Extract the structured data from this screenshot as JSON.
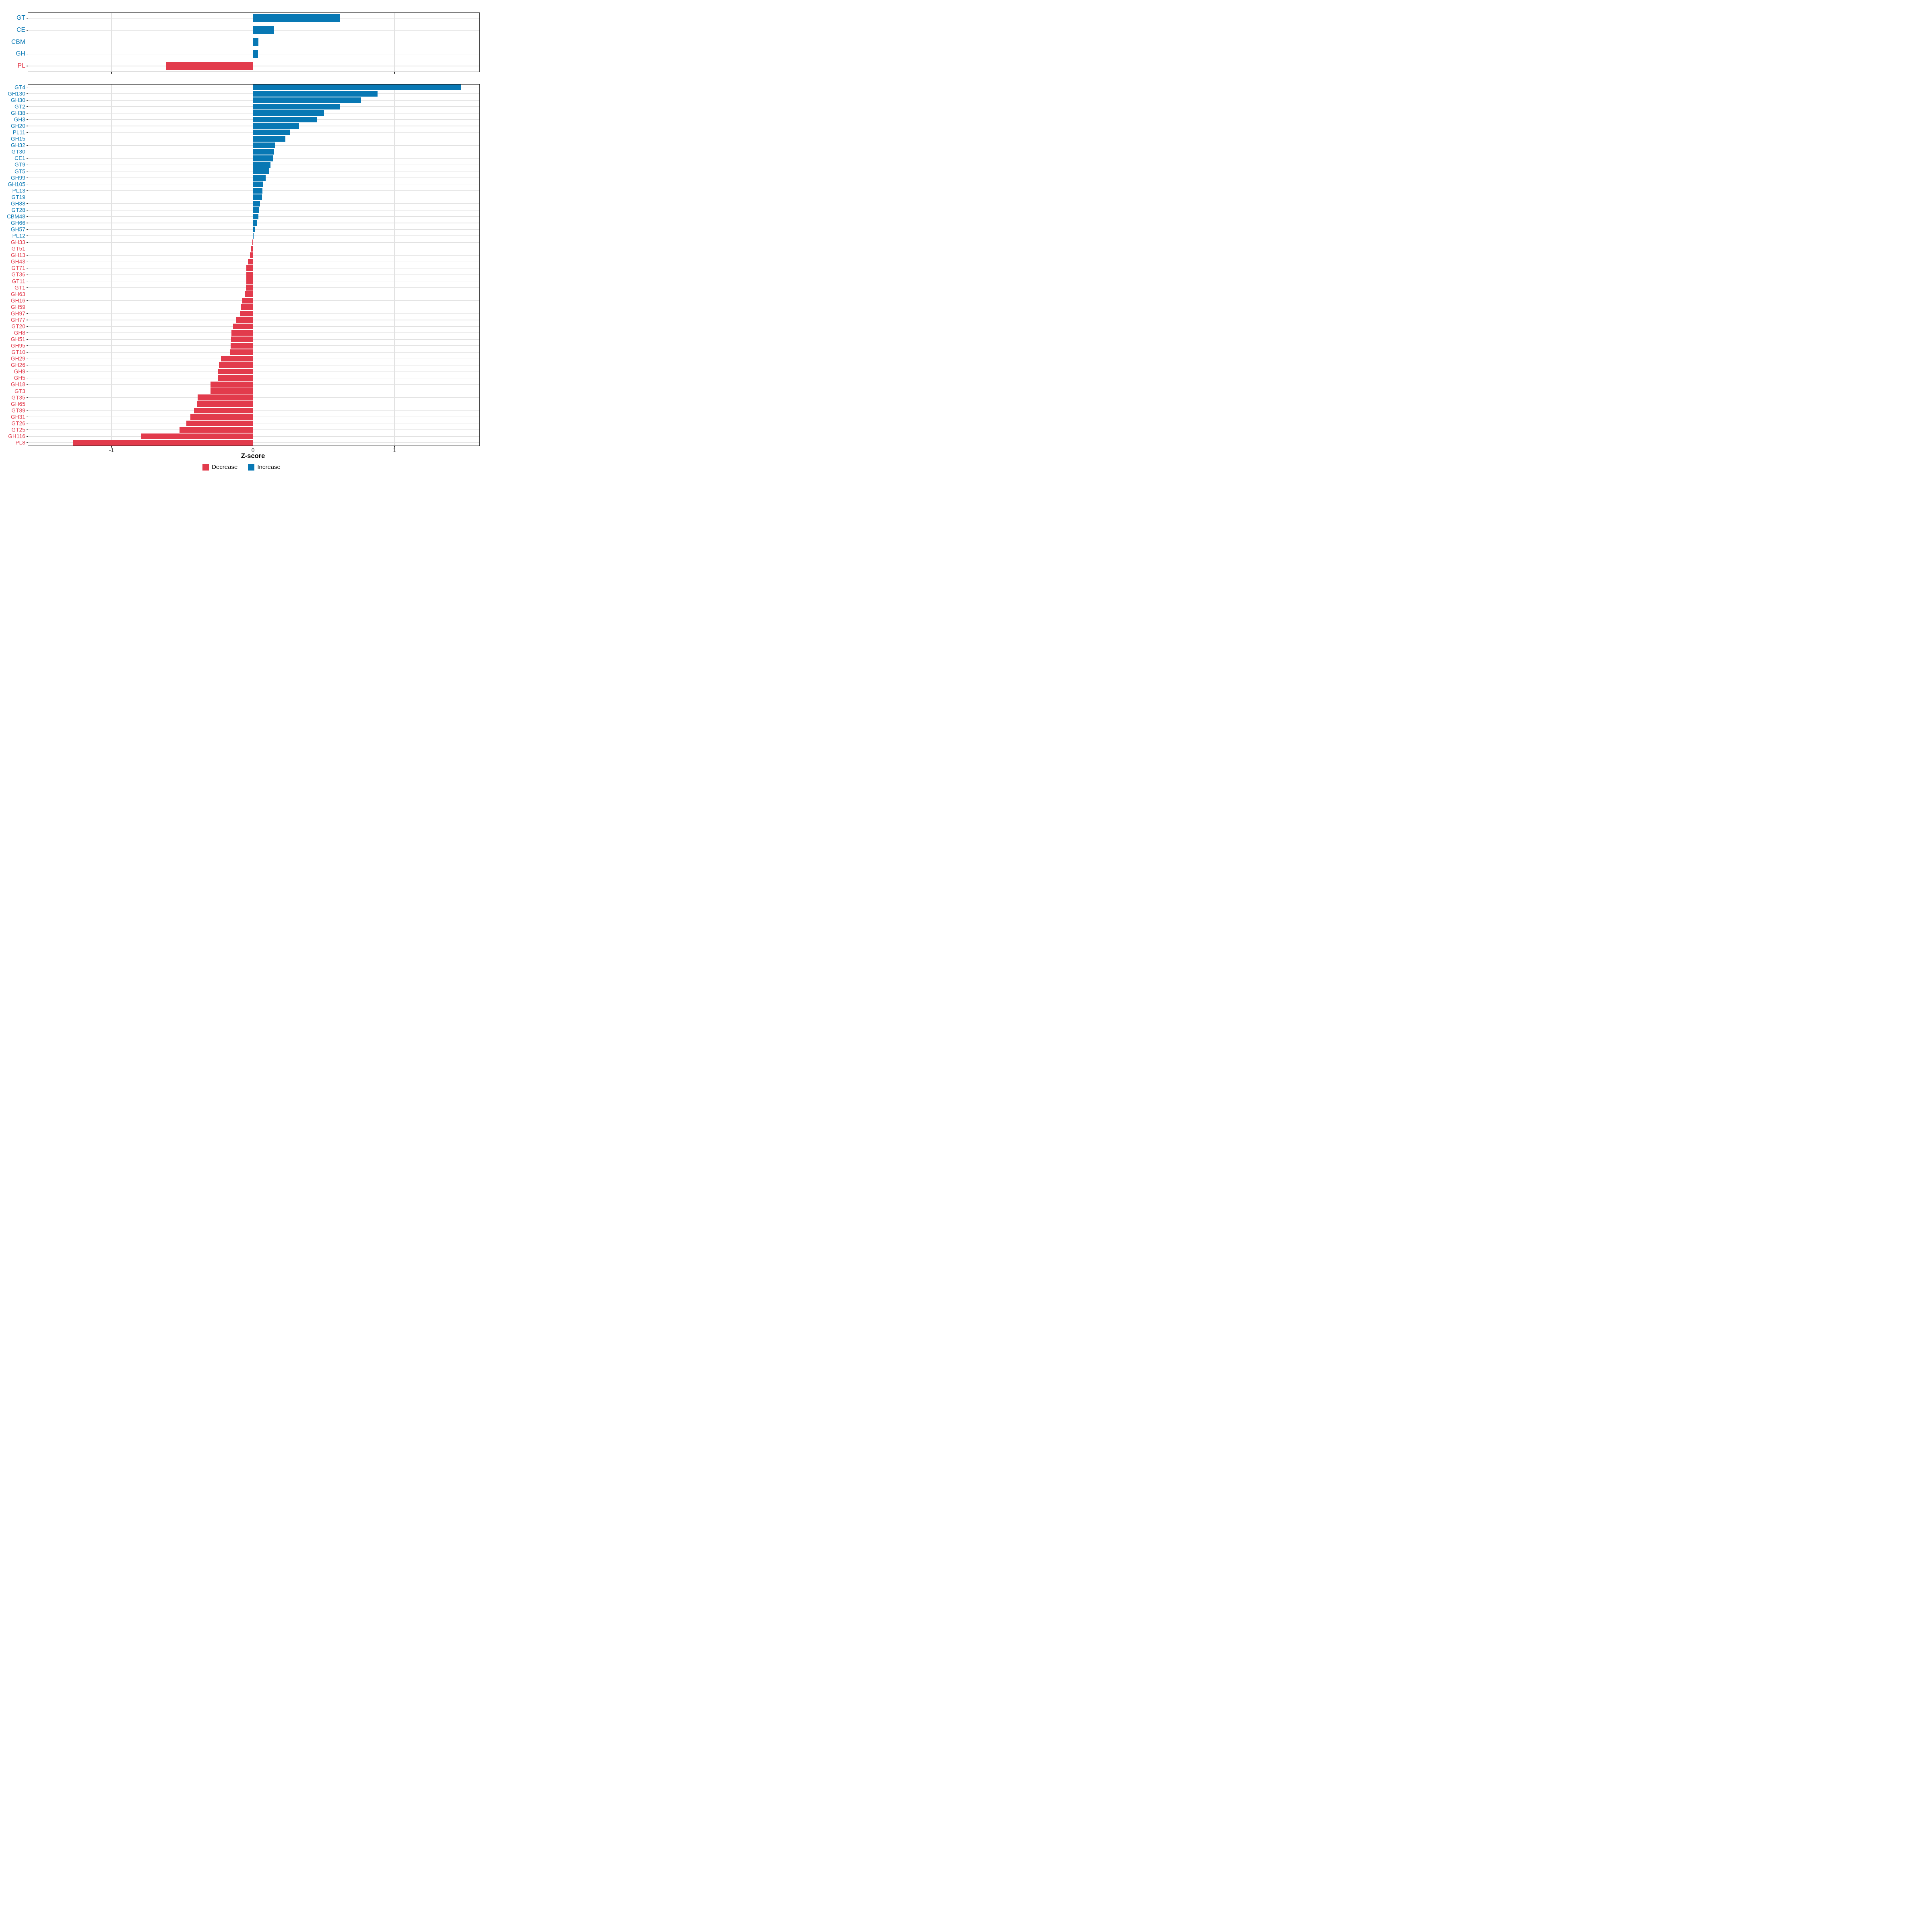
{
  "chart": {
    "xlabel": "Z-score",
    "x_tick_labels": [
      "-1",
      "0",
      "1"
    ],
    "x_tick_values": [
      -1,
      0,
      1
    ],
    "xlim": [
      -1.58,
      1.6
    ],
    "grid": "on",
    "colors": {
      "increase": "#0878B4",
      "decrease": "#E23B4C",
      "grid": "#E2E2E2",
      "axis_text": "#4D4D4D",
      "panel_border": "#1A1A1A"
    },
    "legend": {
      "position": "bottom-center",
      "items": [
        {
          "key": "decrease",
          "label": "Decrease"
        },
        {
          "key": "increase",
          "label": "Increase"
        }
      ]
    }
  },
  "chart_data": [
    {
      "type": "bar",
      "orientation": "horizontal",
      "panel": "top",
      "title": "",
      "xlabel": "Z-score",
      "xlim": [
        -1.58,
        1.6
      ],
      "categories": [
        "GT",
        "CE",
        "CBM",
        "GH",
        "PL"
      ],
      "values": [
        0.614,
        0.147,
        0.039,
        0.036,
        -0.614
      ]
    },
    {
      "type": "bar",
      "orientation": "horizontal",
      "panel": "bottom",
      "title": "",
      "xlabel": "Z-score",
      "xlim": [
        -1.58,
        1.6
      ],
      "categories": [
        "GT4",
        "GH130",
        "GH30",
        "GT2",
        "GH38",
        "GH3",
        "GH20",
        "PL11",
        "GH15",
        "GH32",
        "GT30",
        "CE1",
        "GT9",
        "GT5",
        "GH99",
        "GH105",
        "PL13",
        "GT19",
        "GH88",
        "GT28",
        "CBM48",
        "GH66",
        "GH57",
        "PL12",
        "GH33",
        "GT51",
        "GH13",
        "GH43",
        "GT71",
        "GT36",
        "GT11",
        "GT1",
        "GH63",
        "GH16",
        "GH59",
        "GH97",
        "GH77",
        "GT20",
        "GH8",
        "GH51",
        "GH95",
        "GT10",
        "GH29",
        "GH26",
        "GH9",
        "GH5",
        "GH18",
        "GT3",
        "GT35",
        "GH65",
        "GT89",
        "GH31",
        "GT26",
        "GT25",
        "GH116",
        "PL8"
      ],
      "values": [
        1.47,
        0.88,
        0.765,
        0.615,
        0.503,
        0.455,
        0.325,
        0.26,
        0.23,
        0.155,
        0.15,
        0.145,
        0.125,
        0.115,
        0.09,
        0.07,
        0.066,
        0.063,
        0.05,
        0.042,
        0.038,
        0.026,
        0.012,
        0.005,
        -0.004,
        -0.017,
        -0.021,
        -0.036,
        -0.046,
        -0.047,
        -0.048,
        -0.049,
        -0.059,
        -0.076,
        -0.083,
        -0.091,
        -0.119,
        -0.142,
        -0.153,
        -0.155,
        -0.158,
        -0.163,
        -0.226,
        -0.24,
        -0.245,
        -0.249,
        -0.299,
        -0.301,
        -0.39,
        -0.393,
        -0.416,
        -0.443,
        -0.471,
        -0.52,
        -0.79,
        -1.27
      ]
    }
  ]
}
